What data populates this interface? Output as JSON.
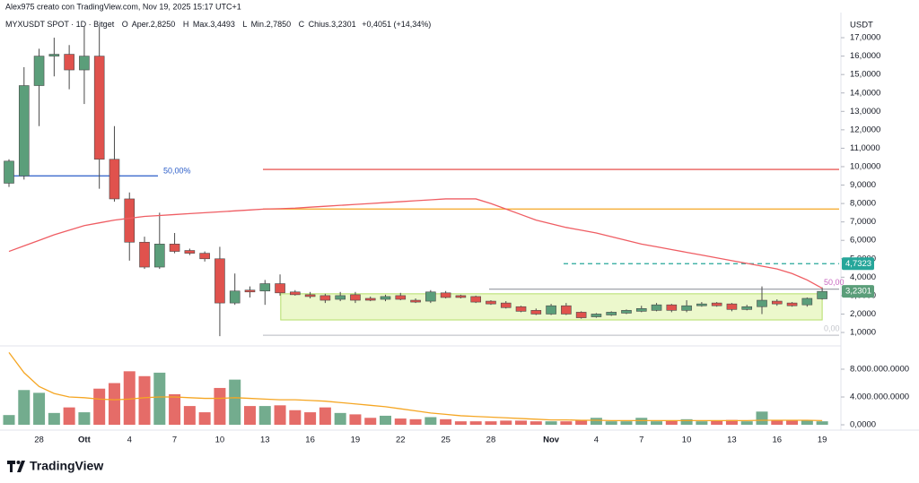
{
  "header": {
    "attribution": "Alex975 creato con TradingView.com, Nov 19, 2025 15:17 UTC+1",
    "symbol": "MYXUSDT SPOT · 1D · Bitget",
    "ohlc": [
      "O",
      "Aper.2,8250",
      "H",
      "Max.3,4493",
      "L",
      "Min.2,7850",
      "C",
      "Chius.3,2301",
      "+0,4051 (+14,34%)"
    ]
  },
  "logo": "TradingView",
  "chart_data": {
    "type": "candlestick",
    "currency": "USDT",
    "categories": [
      null,
      null,
      "28",
      null,
      null,
      "Ott",
      null,
      null,
      "4",
      null,
      null,
      "7",
      null,
      null,
      "10",
      null,
      null,
      "13",
      null,
      null,
      "16",
      null,
      null,
      "19",
      null,
      null,
      "22",
      null,
      null,
      "25",
      null,
      null,
      "28",
      null,
      null,
      null,
      "Nov",
      null,
      null,
      "4",
      null,
      null,
      "7",
      null,
      null,
      "10",
      null,
      null,
      "13",
      null,
      null,
      "16",
      null,
      null,
      "19"
    ],
    "open": [
      9.1,
      9.5,
      14.4,
      16.0,
      16.1,
      15.25,
      16.0,
      10.4,
      8.25,
      5.9,
      4.55,
      5.8,
      5.45,
      5.3,
      5.0,
      2.6,
      3.3,
      3.25,
      3.65,
      3.2,
      3.05,
      3.0,
      2.8,
      3.05,
      2.85,
      2.8,
      3.0,
      2.75,
      2.7,
      3.15,
      3.0,
      2.95,
      2.7,
      2.6,
      2.4,
      2.2,
      2.0,
      2.45,
      2.1,
      1.85,
      1.95,
      2.05,
      2.15,
      2.2,
      2.5,
      2.2,
      2.45,
      2.6,
      2.55,
      2.25,
      2.4,
      2.7,
      2.6,
      2.5,
      2.825
    ],
    "high": [
      10.4,
      15.4,
      16.4,
      17.0,
      16.6,
      17.6,
      17.6,
      12.2,
      8.6,
      6.2,
      7.5,
      6.4,
      5.55,
      5.4,
      5.65,
      4.2,
      3.5,
      3.85,
      4.15,
      3.3,
      3.2,
      3.1,
      3.2,
      3.2,
      2.95,
      3.05,
      3.15,
      2.85,
      3.3,
      3.25,
      3.05,
      3.0,
      2.75,
      2.7,
      2.45,
      2.3,
      2.55,
      2.6,
      2.15,
      2.05,
      2.15,
      2.25,
      2.45,
      2.6,
      2.55,
      2.75,
      2.65,
      2.65,
      2.6,
      2.5,
      3.5,
      2.8,
      2.65,
      2.9,
      3.4493
    ],
    "low": [
      8.9,
      9.3,
      12.2,
      14.9,
      14.2,
      13.4,
      8.8,
      8.1,
      4.9,
      4.45,
      4.45,
      5.3,
      5.2,
      4.85,
      0.8,
      2.5,
      2.9,
      2.5,
      3.0,
      3.0,
      2.85,
      2.6,
      2.7,
      2.6,
      2.7,
      2.7,
      2.75,
      2.6,
      2.6,
      2.85,
      2.85,
      2.6,
      2.5,
      2.3,
      2.1,
      1.95,
      1.95,
      1.95,
      1.75,
      1.8,
      1.9,
      2.0,
      2.1,
      2.15,
      2.1,
      2.1,
      2.4,
      2.4,
      2.15,
      2.2,
      2.0,
      2.45,
      2.4,
      2.4,
      2.785
    ],
    "close": [
      10.3,
      14.4,
      16.0,
      16.1,
      15.25,
      16.0,
      10.4,
      8.25,
      5.9,
      4.55,
      5.8,
      5.4,
      5.3,
      5.0,
      2.6,
      3.25,
      3.2,
      3.65,
      3.15,
      3.05,
      2.95,
      2.75,
      3.0,
      2.75,
      2.75,
      2.95,
      2.8,
      2.65,
      3.2,
      2.9,
      2.9,
      2.65,
      2.55,
      2.35,
      2.15,
      2.0,
      2.45,
      2.0,
      1.8,
      2.0,
      2.1,
      2.2,
      2.3,
      2.5,
      2.2,
      2.45,
      2.55,
      2.45,
      2.25,
      2.4,
      2.75,
      2.55,
      2.45,
      2.85,
      3.2301
    ],
    "ma": [
      5.4,
      5.7,
      6.0,
      6.3,
      6.55,
      6.8,
      6.95,
      7.1,
      7.2,
      7.3,
      7.35,
      7.4,
      7.45,
      7.5,
      7.55,
      7.6,
      7.65,
      7.7,
      7.72,
      7.75,
      7.8,
      7.85,
      7.9,
      7.95,
      8.0,
      8.05,
      8.1,
      8.15,
      8.2,
      8.25,
      8.25,
      8.25,
      8.0,
      7.7,
      7.4,
      7.1,
      6.9,
      6.7,
      6.55,
      6.4,
      6.2,
      6.0,
      5.8,
      5.65,
      5.5,
      5.35,
      5.2,
      5.05,
      4.9,
      4.75,
      4.6,
      4.45,
      4.2,
      3.85,
      3.4
    ],
    "ma_color": "#ef5d63",
    "volume": [
      1400000000,
      5000000000,
      4600000000,
      1700000000,
      2500000000,
      1800000000,
      5200000000,
      6000000000,
      7700000000,
      7000000000,
      7500000000,
      4400000000,
      2700000000,
      1800000000,
      5300000000,
      6500000000,
      2700000000,
      2700000000,
      2800000000,
      2100000000,
      1800000000,
      2500000000,
      1700000000,
      1500000000,
      1000000000,
      1300000000,
      900000000,
      800000000,
      1100000000,
      800000000,
      500000000,
      500000000,
      500000000,
      600000000,
      600000000,
      500000000,
      500000000,
      500000000,
      600000000,
      1000000000,
      500000000,
      500000000,
      1000000000,
      500000000,
      600000000,
      800000000,
      500000000,
      600000000,
      700000000,
      500000000,
      1900000000,
      600000000,
      600000000,
      700000000,
      500000000
    ],
    "volume_ma": [
      10400000000,
      7500000000,
      5500000000,
      4500000000,
      4000000000,
      3900000000,
      3700000000,
      3600000000,
      3700000000,
      3900000000,
      4000000000,
      4000000000,
      3900000000,
      3800000000,
      3800000000,
      3900000000,
      3800000000,
      3700000000,
      3600000000,
      3600000000,
      3500000000,
      3400000000,
      3200000000,
      3000000000,
      2800000000,
      2600000000,
      2300000000,
      2000000000,
      1700000000,
      1500000000,
      1300000000,
      1200000000,
      1100000000,
      1000000000,
      900000000,
      800000000,
      700000000,
      700000000,
      650000000,
      650000000,
      600000000,
      600000000,
      600000000,
      600000000,
      600000000,
      600000000,
      600000000,
      600000000,
      600000000,
      600000000,
      650000000,
      650000000,
      650000000,
      650000000,
      600000000
    ],
    "volume_ma_color": "#f5a623",
    "up_color": "#5b9e7a",
    "down_color": "#e0524d",
    "ylim": [
      0.32,
      18.17
    ],
    "yticks": [
      {
        "value": 1,
        "label": "1,0000"
      },
      {
        "value": 2,
        "label": "2,0000"
      },
      {
        "value": 3,
        "label": "3,0000"
      },
      {
        "value": 4,
        "label": "4,0000"
      },
      {
        "value": 5,
        "label": "5,0000"
      },
      {
        "value": 6,
        "label": "6,0000"
      },
      {
        "value": 7,
        "label": "7,0000"
      },
      {
        "value": 8,
        "label": "8,0000"
      },
      {
        "value": 9,
        "label": "9,0000"
      },
      {
        "value": 10,
        "label": "10,0000"
      },
      {
        "value": 11,
        "label": "11,0000"
      },
      {
        "value": 12,
        "label": "12,0000"
      },
      {
        "value": 13,
        "label": "13,0000"
      },
      {
        "value": 14,
        "label": "14,0000"
      },
      {
        "value": 15,
        "label": "15,0000"
      },
      {
        "value": 16,
        "label": "16,0000"
      },
      {
        "value": 17,
        "label": "17,0000"
      }
    ],
    "volume_lim": [
      -770000000,
      10580000000
    ],
    "volume_ticks": [
      {
        "value": 0,
        "label": "0,0000"
      },
      {
        "value": 4000000000,
        "label": "4.000.000.0000"
      },
      {
        "value": 8000000000,
        "label": "8.000.000.0000"
      }
    ],
    "zone": {
      "top": 3.1,
      "bottom": 1.68,
      "color": "#ecf8cc",
      "border": "#b5de6a"
    },
    "levels": [
      {
        "value": 9.5,
        "color": "#2a5cc8",
        "label": "50,00%"
      },
      {
        "value": 9.85,
        "color": "#e53935"
      },
      {
        "value": 7.7,
        "color": "#f5a623"
      },
      {
        "value": 4.7323,
        "color": "#26a69a",
        "label": "4,7323",
        "dashed": true
      },
      {
        "value": 3.35,
        "color": "#9598a1",
        "label": "50,00"
      },
      {
        "value": 0.85,
        "color": "#c4c6cc",
        "label": "0,00"
      }
    ],
    "last_label": {
      "value": 3.2301,
      "label": "3,2301"
    }
  }
}
